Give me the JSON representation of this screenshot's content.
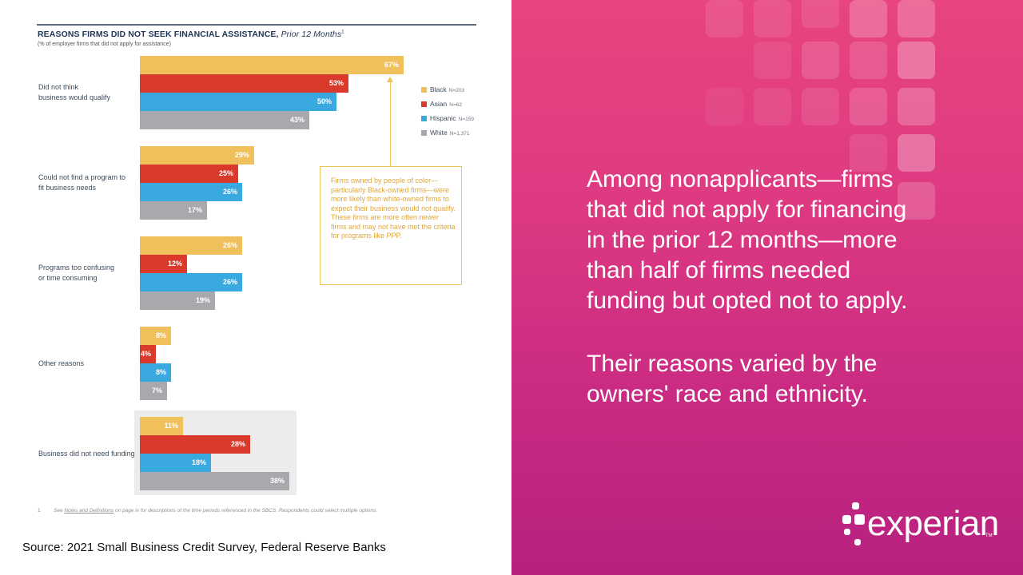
{
  "chart_data": {
    "type": "bar",
    "orientation": "horizontal",
    "title": "REASONS FIRMS DID NOT SEEK FINANCIAL ASSISTANCE,",
    "title_italic": "Prior 12 Months",
    "title_sup": "1",
    "subtitle": "(% of employer firms that did not apply for assistance)",
    "categories": [
      "Did not think\nbusiness would qualify",
      "Could not find a program to\nfit business needs",
      "Programs too confusing\nor time consuming",
      "Other reasons",
      "Business did not need funding"
    ],
    "series": [
      {
        "name": "Black",
        "n": "N=203",
        "color": "#f0c05a",
        "values": [
          67,
          29,
          26,
          8,
          11
        ]
      },
      {
        "name": "Asian",
        "n": "N=62",
        "color": "#d93a2b",
        "values": [
          53,
          25,
          12,
          4,
          28
        ]
      },
      {
        "name": "Hispanic",
        "n": "N=159",
        "color": "#39a9e0",
        "values": [
          50,
          26,
          26,
          8,
          18
        ]
      },
      {
        "name": "White",
        "n": "N=1,371",
        "color": "#a8a9ad",
        "values": [
          43,
          17,
          19,
          7,
          38
        ]
      }
    ],
    "value_suffix": "%",
    "xlim": [
      0,
      67
    ],
    "legend_position": "right",
    "grid": false,
    "highlighted_category": "Business did not need funding",
    "annotation": "Firms owned by people of color—particularly Black-owned firms—were more likely than white-owned firms to expect their business would not qualify. These firms are more often newer firms and may not have met the criteria for programs like PPP."
  },
  "footnote": {
    "number": "1",
    "prefix": "See",
    "link": "Notes and Definitions",
    "mid": "on page iv for descriptions of the time periods referenced in the SBCS.",
    "suffix": "Respondents could select multiple options."
  },
  "source": "Source: 2021 Small Business Credit Survey, Federal Reserve Banks",
  "main_text": "Among nonapplicants—firms\nthat did not apply for financing\nin the prior 12 months—more\nthan half of firms needed\nfunding but opted not to apply.",
  "sub_text": "Their reasons varied by the\nowners' race and ethnicity.",
  "logo": {
    "word": "experian",
    "tm": "TM"
  },
  "colors": {
    "panel_top": "#e8447f",
    "panel_bottom": "#b7217f",
    "accent": "#f0c05a"
  }
}
